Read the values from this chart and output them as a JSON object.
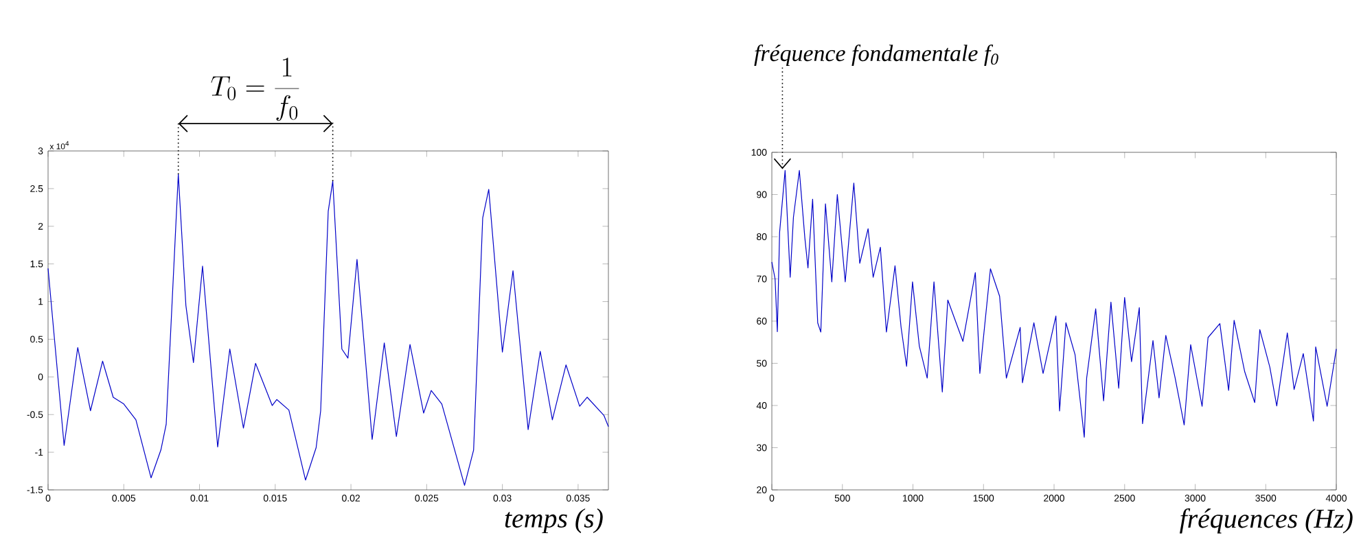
{
  "chart_data": [
    {
      "type": "line",
      "xlabel": "temps (s)",
      "color": "#0000c8",
      "x": [
        0,
        0.00106,
        0.00196,
        0.0028,
        0.0036,
        0.0043,
        0.005,
        0.0058,
        0.0068,
        0.00745,
        0.0078,
        0.0086,
        0.0091,
        0.0096,
        0.0102,
        0.0112,
        0.012,
        0.0129,
        0.0137,
        0.0148,
        0.0151,
        0.0159,
        0.017,
        0.0177,
        0.018,
        0.0185,
        0.0188,
        0.0194,
        0.0198,
        0.0204,
        0.0214,
        0.0222,
        0.023,
        0.0239,
        0.0248,
        0.0253,
        0.026,
        0.0275,
        0.0281,
        0.0287,
        0.0291,
        0.03,
        0.0307,
        0.0317,
        0.0325,
        0.0333,
        0.0342,
        0.0351,
        0.0356,
        0.0367,
        0.037
      ],
      "values": [
        1.44,
        -0.91,
        0.39,
        -0.45,
        0.21,
        -0.27,
        -0.36,
        -0.57,
        -1.34,
        -0.97,
        -0.63,
        2.69,
        0.95,
        0.19,
        1.47,
        -0.93,
        0.37,
        -0.68,
        0.18,
        -0.38,
        -0.3,
        -0.44,
        -1.37,
        -0.94,
        -0.45,
        2.2,
        2.6,
        0.37,
        0.25,
        1.56,
        -0.83,
        0.45,
        -0.79,
        0.43,
        -0.48,
        -0.18,
        -0.36,
        -1.44,
        -0.97,
        2.11,
        2.49,
        0.33,
        1.41,
        -0.7,
        0.34,
        -0.57,
        0.16,
        -0.39,
        -0.27,
        -0.51,
        -0.66
      ],
      "xlim": [
        0,
        0.037
      ],
      "xticks": [
        0,
        0.005,
        0.01,
        0.015,
        0.02,
        0.025,
        0.03,
        0.035
      ],
      "ylim": [
        -1.5,
        3
      ],
      "yticks": [
        -1.5,
        -1,
        -0.5,
        0,
        0.5,
        1,
        1.5,
        2,
        2.5,
        3
      ],
      "annotations": [
        "x 10$^{4}$",
        "T_0 = \\frac{1}{f_0}"
      ]
    },
    {
      "type": "line",
      "xlabel": "fréquences (Hz)",
      "color": "#0000c8",
      "x": [
        0,
        23,
        39,
        55,
        94,
        130,
        153,
        195,
        234,
        256,
        289,
        325,
        347,
        380,
        425,
        464,
        520,
        581,
        623,
        682,
        718,
        769,
        812,
        873,
        916,
        955,
        997,
        1045,
        1101,
        1149,
        1208,
        1247,
        1354,
        1442,
        1474,
        1549,
        1614,
        1662,
        1760,
        1776,
        1857,
        1922,
        2013,
        2039,
        2084,
        2149,
        2214,
        2231,
        2295,
        2351,
        2403,
        2458,
        2500,
        2549,
        2604,
        2627,
        2701,
        2744,
        2792,
        2857,
        2922,
        2968,
        3049,
        3091,
        3175,
        3237,
        3276,
        3351,
        3422,
        3458,
        3529,
        3578,
        3653,
        3701,
        3766,
        3838,
        3854,
        3935,
        4000
      ],
      "values": [
        74,
        70,
        57.5,
        81,
        95.7,
        70.4,
        84.6,
        95.7,
        79.7,
        72.6,
        88.9,
        59.6,
        57.4,
        87.8,
        69.3,
        90,
        69.3,
        92.7,
        73.7,
        81.9,
        70.4,
        77.5,
        57.4,
        73.1,
        58.5,
        49.3,
        69.3,
        54.1,
        46.5,
        69.3,
        43.2,
        65,
        55.2,
        71.5,
        47.6,
        72.4,
        65.9,
        46.5,
        58.5,
        45.4,
        59.6,
        47.6,
        61.2,
        38.7,
        59.6,
        52,
        32.5,
        46.5,
        62.9,
        41.1,
        64.5,
        44.1,
        65.6,
        50.4,
        63.2,
        35.7,
        55.4,
        41.8,
        56.6,
        46.7,
        35.4,
        54.4,
        39.8,
        56.1,
        59.4,
        43.6,
        60.2,
        48,
        40.7,
        58,
        49.1,
        39.9,
        57.2,
        43.8,
        52.3,
        36.3,
        53.9,
        39.8,
        53.4
      ],
      "xlim": [
        0,
        4000
      ],
      "xticks": [
        0,
        500,
        1000,
        1500,
        2000,
        2500,
        3000,
        3500,
        4000
      ],
      "ylim": [
        20,
        100
      ],
      "yticks": [
        20,
        30,
        40,
        50,
        60,
        70,
        80,
        90,
        100
      ],
      "annotations": [
        {
          "text": "fréquence fondamentale f$_{0}$",
          "x": 75,
          "y": 96
        }
      ]
    }
  ]
}
